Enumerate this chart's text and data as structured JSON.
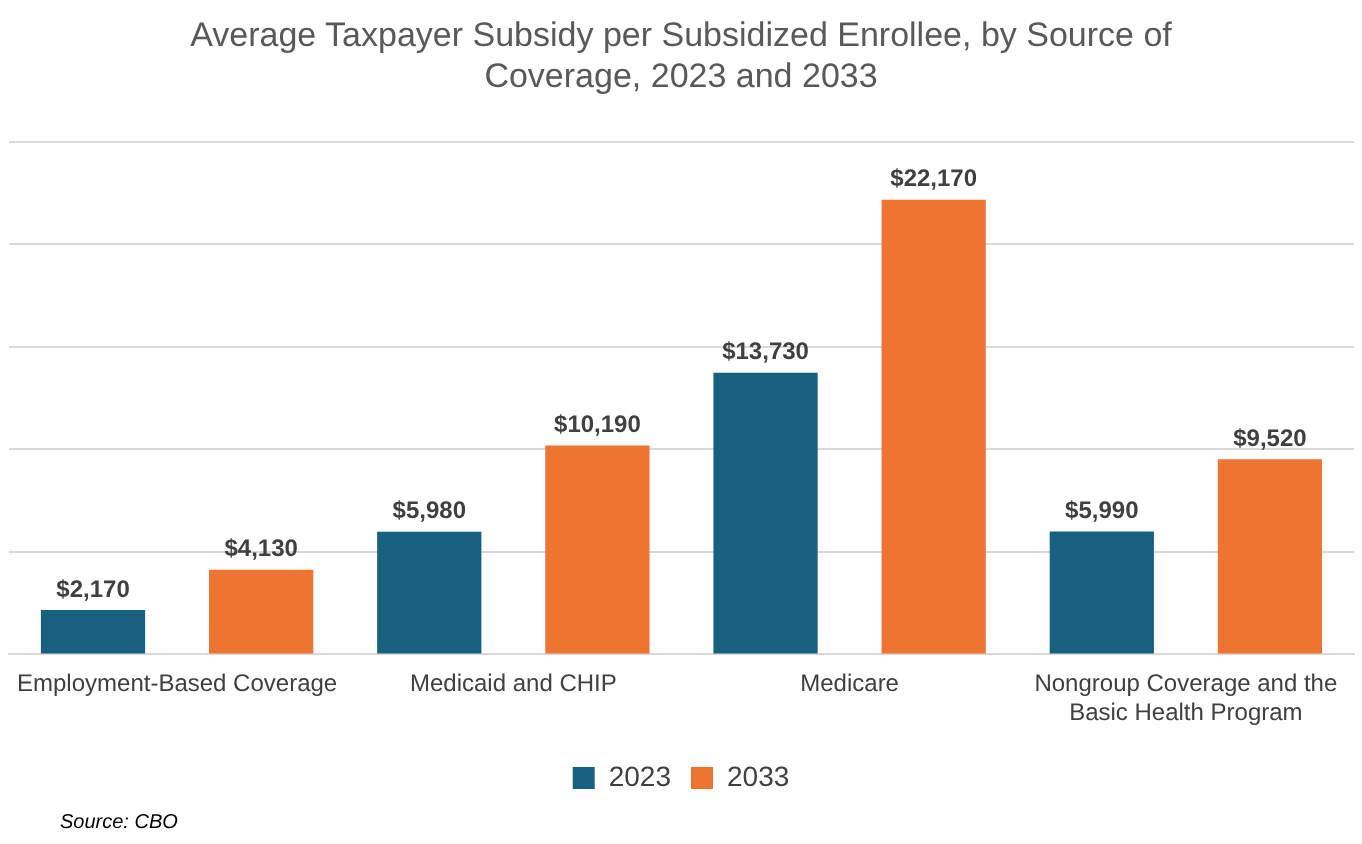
{
  "chart_data": {
    "type": "bar",
    "title": "Average Taxpayer Subsidy per Subsidized Enrollee, by Source of Coverage, 2023 and 2033",
    "categories": [
      "Employment-Based Coverage",
      "Medicaid and CHIP",
      "Medicare",
      "Nongroup Coverage and the Basic Health Program"
    ],
    "series": [
      {
        "name": "2023",
        "color": "#17607f",
        "values": [
          2170,
          5980,
          13730,
          5990
        ],
        "value_labels": [
          "$2,170",
          "$5,980",
          "$13,730",
          "$5,990"
        ]
      },
      {
        "name": "2033",
        "color": "#ed7433",
        "values": [
          4130,
          10190,
          22170,
          9520
        ],
        "value_labels": [
          "$4,130",
          "$10,190",
          "$22,170",
          "$9,520"
        ]
      }
    ],
    "ylim": [
      0,
      25000
    ],
    "yticks": [
      {
        "value": 0,
        "label": null
      },
      {
        "value": 5000,
        "label": null
      },
      {
        "value": 10000,
        "label": null
      },
      {
        "value": 15000,
        "label": null
      },
      {
        "value": 20000,
        "label": null
      },
      {
        "value": 25000,
        "label": null
      }
    ],
    "grid": "y",
    "legend": "bottom",
    "tick_labels": "x",
    "annotations": [
      "Source: CBO"
    ]
  }
}
